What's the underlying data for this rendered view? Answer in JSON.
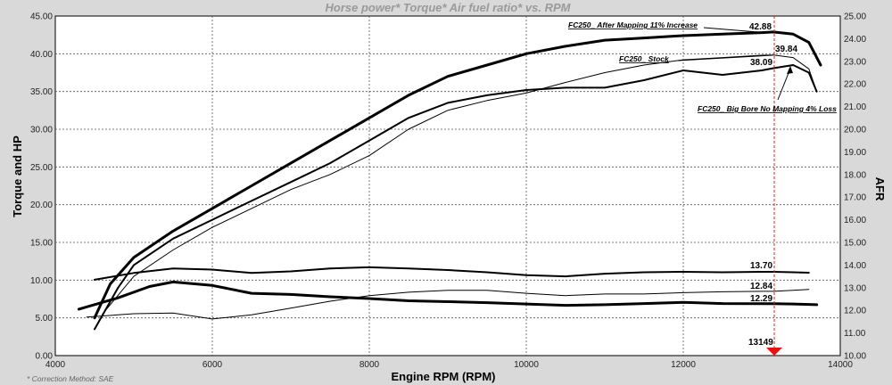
{
  "chart_data": {
    "type": "line",
    "title": "Horse power* Torque* Air fuel ratio* vs. RPM",
    "xlabel": "Engine RPM (RPM)",
    "ylabel_left": "Torque and HP",
    "ylabel_right": "AFR",
    "xlim": [
      4000,
      14000
    ],
    "ylim_left": [
      0,
      45
    ],
    "ylim_right": [
      10,
      25
    ],
    "x_ticks": [
      "4000",
      "6000",
      "8000",
      "10000",
      "12000",
      "14000"
    ],
    "y_ticks_left": [
      "0.00",
      "5.00",
      "10.00",
      "15.00",
      "20.00",
      "25.00",
      "30.00",
      "35.00",
      "40.00",
      "45.00"
    ],
    "y_ticks_right": [
      "10.00",
      "11.00",
      "12.00",
      "13.00",
      "14.00",
      "15.00",
      "16.00",
      "17.00",
      "18.00",
      "19.00",
      "20.00",
      "21.00",
      "22.00",
      "23.00",
      "24.00",
      "25.00"
    ],
    "grid": true,
    "cursor_rpm": "13149",
    "footnote": "* Correction Method: SAE",
    "annotations": [
      {
        "text": "FC250_ After Mapping 11% Increase"
      },
      {
        "text": "FC250_ Stock"
      },
      {
        "text": "FC250_ Big Bore No Mapping 4% Loss"
      }
    ],
    "cursor_values": [
      "42.88",
      "39.84",
      "38.09",
      "13.70",
      "12.84",
      "12.29"
    ],
    "series": [
      {
        "label": "FC250_ After Mapping 11% Increase",
        "axis": "left",
        "width": 3,
        "x": [
          4500,
          4700,
          5000,
          5500,
          6000,
          6500,
          7000,
          7500,
          8000,
          8500,
          9000,
          9500,
          10000,
          10500,
          11000,
          11500,
          12000,
          12500,
          13000,
          13149,
          13400,
          13600,
          13750
        ],
        "y": [
          5.0,
          9.5,
          13.0,
          16.5,
          19.5,
          22.5,
          25.5,
          28.5,
          31.5,
          34.5,
          37.0,
          38.5,
          40.0,
          41.0,
          41.8,
          42.1,
          42.4,
          42.6,
          42.8,
          42.88,
          42.6,
          41.5,
          38.5
        ]
      },
      {
        "label": "FC250_ Stock",
        "axis": "left",
        "width": 1,
        "x": [
          4600,
          5000,
          5500,
          6000,
          6500,
          7000,
          7500,
          8000,
          8500,
          9000,
          9500,
          10000,
          10500,
          11000,
          11500,
          12000,
          12500,
          13000,
          13149,
          13400,
          13600,
          13700
        ],
        "y": [
          5.5,
          10.5,
          14.0,
          17.0,
          19.5,
          22.0,
          24.0,
          26.5,
          30.0,
          32.5,
          33.8,
          34.8,
          36.2,
          37.5,
          38.5,
          39.2,
          39.5,
          39.8,
          39.84,
          39.5,
          38.0,
          35.0
        ]
      },
      {
        "label": "FC250_ Big Bore No Mapping 4% Loss",
        "axis": "left",
        "width": 2,
        "x": [
          4500,
          4800,
          5000,
          5500,
          6000,
          6500,
          7000,
          7500,
          8000,
          8500,
          9000,
          9500,
          10000,
          10500,
          11000,
          11500,
          12000,
          12500,
          13000,
          13149,
          13400,
          13600,
          13700
        ],
        "y": [
          3.5,
          9.0,
          12.0,
          15.5,
          18.0,
          20.5,
          23.0,
          25.5,
          28.5,
          31.5,
          33.5,
          34.5,
          35.2,
          35.5,
          35.5,
          36.5,
          37.8,
          37.2,
          37.8,
          38.09,
          38.5,
          37.5,
          35.0
        ]
      },
      {
        "label": "AFR 13.70",
        "axis": "right",
        "width": 2,
        "x": [
          4500,
          5000,
          5500,
          6000,
          6500,
          7000,
          7500,
          8000,
          8500,
          9000,
          9500,
          10000,
          10500,
          11000,
          11500,
          12000,
          12500,
          13000,
          13149,
          13400,
          13600
        ],
        "y": [
          13.35,
          13.65,
          13.85,
          13.8,
          13.65,
          13.72,
          13.85,
          13.9,
          13.85,
          13.78,
          13.68,
          13.55,
          13.5,
          13.62,
          13.68,
          13.7,
          13.68,
          13.7,
          13.7,
          13.68,
          13.66
        ]
      },
      {
        "label": "AFR 12.84",
        "axis": "right",
        "width": 1,
        "x": [
          4400,
          5000,
          5500,
          6000,
          6500,
          7000,
          7500,
          8000,
          8500,
          9000,
          9500,
          10000,
          10500,
          11000,
          11500,
          12000,
          12500,
          13000,
          13149,
          13400,
          13600
        ],
        "y": [
          11.7,
          11.85,
          11.88,
          11.62,
          11.8,
          12.1,
          12.4,
          12.65,
          12.8,
          12.88,
          12.88,
          12.75,
          12.65,
          12.72,
          12.72,
          12.78,
          12.82,
          12.84,
          12.84,
          12.88,
          12.92
        ]
      },
      {
        "label": "AFR 12.29",
        "axis": "right",
        "width": 3,
        "x": [
          4300,
          4800,
          5200,
          5500,
          6000,
          6500,
          7000,
          7500,
          8000,
          8500,
          9000,
          9500,
          10000,
          10500,
          11000,
          11500,
          12000,
          12500,
          13000,
          13149,
          13400,
          13700
        ],
        "y": [
          12.05,
          12.55,
          13.05,
          13.25,
          13.1,
          12.75,
          12.7,
          12.6,
          12.52,
          12.42,
          12.38,
          12.34,
          12.28,
          12.22,
          12.25,
          12.3,
          12.35,
          12.3,
          12.29,
          12.29,
          12.28,
          12.25
        ]
      }
    ]
  }
}
